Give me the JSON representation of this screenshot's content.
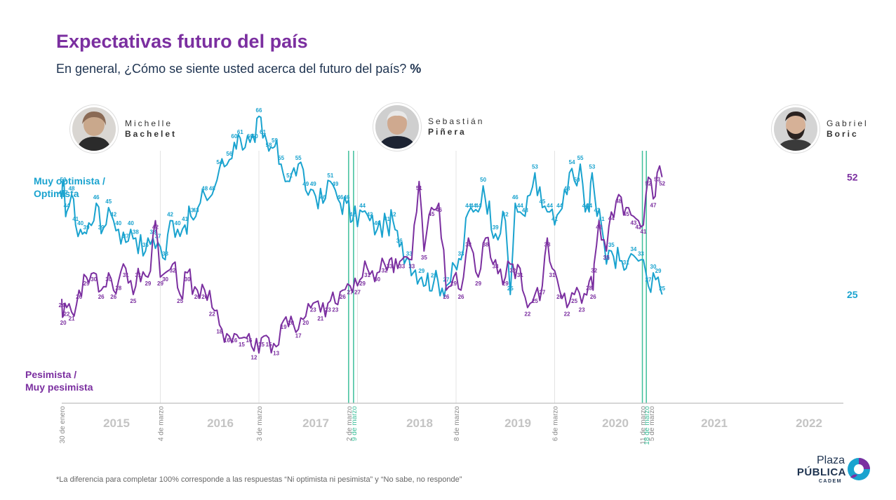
{
  "title": "Expectativas futuro del país",
  "subtitle_main": "En general, ¿Cómo se siente usted acerca del futuro del país? ",
  "subtitle_unit": "%",
  "presidents": [
    {
      "first": "Michelle",
      "last": "Bachelet"
    },
    {
      "first": "Sebastián",
      "last": "Piñera"
    },
    {
      "first": "Gabriel",
      "last": "Boric"
    }
  ],
  "series_labels": {
    "optimista_1": "Muy optimista /",
    "optimista_2": "Optimista",
    "pesimista_1": "Pesimista /",
    "pesimista_2": "Muy pesimista"
  },
  "footnote": "*La diferencia para completar 100% corresponde a las respuestas “Ni optimista ni pesimista” y “No sabe, no responde”",
  "logo": {
    "line1": "Plaza",
    "line2": "PÚBLICA",
    "line3": "CADEM"
  },
  "colors": {
    "optimista": "#1aa3cf",
    "pesimista": "#7b2fa0",
    "transition": "#3dbf9a",
    "grid": "#e3e3e3",
    "year": "#c4c4c4",
    "date": "#8a8a8a"
  },
  "chart_data": {
    "type": "line",
    "x_start_label": "30 de enero",
    "date_markers": [
      {
        "label": "4 de marzo",
        "kind": "normal"
      },
      {
        "label": "3 de marzo",
        "kind": "normal"
      },
      {
        "label": "2 de marzo",
        "kind": "normal"
      },
      {
        "label": "9 de marzo",
        "kind": "transition"
      },
      {
        "label": "8 de marzo",
        "kind": "normal"
      },
      {
        "label": "6 de marzo",
        "kind": "normal"
      },
      {
        "label": "5 de marzo",
        "kind": "normal"
      },
      {
        "label": "11 de marzo",
        "kind": "normal"
      },
      {
        "label": "18 de marzo",
        "kind": "transition"
      }
    ],
    "years": [
      "2015",
      "2016",
      "2017",
      "2018",
      "2019",
      "2020",
      "2021",
      "2022"
    ],
    "series": [
      {
        "name": "Muy optimista / Optimista",
        "final_label": "25",
        "points": [
          [
            0,
            47
          ],
          [
            0.03,
            50
          ],
          [
            0.06,
            47
          ],
          [
            0.1,
            44
          ],
          [
            0.2,
            48
          ],
          [
            0.28,
            41
          ],
          [
            0.38,
            40
          ],
          [
            0.5,
            39
          ],
          [
            0.7,
            46
          ],
          [
            0.8,
            39
          ],
          [
            0.95,
            45
          ],
          [
            1.05,
            42
          ],
          [
            1.15,
            40
          ],
          [
            1.3,
            37
          ],
          [
            1.4,
            40
          ],
          [
            1.5,
            38
          ],
          [
            1.7,
            35
          ],
          [
            1.85,
            38
          ],
          [
            1.95,
            37
          ],
          [
            2.1,
            33
          ],
          [
            2.2,
            42
          ],
          [
            2.35,
            40
          ],
          [
            2.5,
            41
          ],
          [
            2.62,
            43
          ],
          [
            2.72,
            43
          ],
          [
            2.9,
            48
          ],
          [
            3.05,
            48
          ],
          [
            3.2,
            54
          ],
          [
            3.4,
            56
          ],
          [
            3.5,
            60
          ],
          [
            3.62,
            61
          ],
          [
            3.82,
            60
          ],
          [
            3.92,
            60
          ],
          [
            4.0,
            66
          ],
          [
            4.08,
            61
          ],
          [
            4.2,
            58
          ],
          [
            4.32,
            59
          ],
          [
            4.45,
            55
          ],
          [
            4.62,
            51
          ],
          [
            4.8,
            55
          ],
          [
            4.95,
            49
          ],
          [
            5.1,
            49
          ],
          [
            5.3,
            46
          ],
          [
            5.45,
            51
          ],
          [
            5.55,
            49
          ],
          [
            5.65,
            46
          ],
          [
            5.78,
            46
          ],
          [
            5.9,
            42
          ],
          [
            6.1,
            44
          ],
          [
            6.25,
            42
          ],
          [
            6.4,
            40
          ],
          [
            6.6,
            41
          ],
          [
            6.72,
            42
          ],
          [
            6.85,
            36
          ],
          [
            7.05,
            33
          ],
          [
            7.3,
            29
          ],
          [
            7.55,
            28
          ],
          [
            7.8,
            27
          ],
          [
            8.1,
            33
          ],
          [
            8.25,
            44
          ],
          [
            8.35,
            44
          ],
          [
            8.45,
            44
          ],
          [
            8.55,
            50
          ],
          [
            8.8,
            39
          ],
          [
            9.0,
            42
          ],
          [
            9.1,
            25
          ],
          [
            9.2,
            46
          ],
          [
            9.3,
            44
          ],
          [
            9.4,
            43
          ],
          [
            9.6,
            53
          ],
          [
            9.75,
            45
          ],
          [
            9.9,
            44
          ],
          [
            10.0,
            41
          ],
          [
            10.1,
            44
          ],
          [
            10.25,
            48
          ],
          [
            10.35,
            54
          ],
          [
            10.45,
            50
          ],
          [
            10.52,
            55
          ],
          [
            10.62,
            44
          ],
          [
            10.7,
            44
          ],
          [
            10.76,
            53
          ],
          [
            10.86,
            43
          ],
          [
            10.95,
            41
          ],
          [
            11.05,
            32
          ],
          [
            11.15,
            35
          ],
          [
            11.45,
            31
          ],
          [
            11.6,
            34
          ],
          [
            11.75,
            33
          ],
          [
            11.9,
            27
          ],
          [
            12.0,
            30
          ],
          [
            12.1,
            29
          ],
          [
            12.18,
            25
          ]
        ]
      },
      {
        "name": "Pesimista / Muy pesimista",
        "final_label": "52",
        "points": [
          [
            0,
            24
          ],
          [
            0.03,
            20
          ],
          [
            0.1,
            22
          ],
          [
            0.2,
            21
          ],
          [
            0.35,
            26
          ],
          [
            0.5,
            29
          ],
          [
            0.65,
            30
          ],
          [
            0.8,
            26
          ],
          [
            0.95,
            30
          ],
          [
            1.05,
            26
          ],
          [
            1.15,
            28
          ],
          [
            1.3,
            31
          ],
          [
            1.45,
            25
          ],
          [
            1.55,
            31
          ],
          [
            1.75,
            29
          ],
          [
            1.9,
            42
          ],
          [
            2.0,
            29
          ],
          [
            2.1,
            30
          ],
          [
            2.25,
            32
          ],
          [
            2.4,
            25
          ],
          [
            2.55,
            30
          ],
          [
            2.75,
            26
          ],
          [
            2.9,
            26
          ],
          [
            3.05,
            22
          ],
          [
            3.2,
            18
          ],
          [
            3.35,
            16
          ],
          [
            3.5,
            16
          ],
          [
            3.65,
            15
          ],
          [
            3.8,
            16
          ],
          [
            3.9,
            12
          ],
          [
            4.05,
            15
          ],
          [
            4.2,
            15
          ],
          [
            4.35,
            13
          ],
          [
            4.5,
            19
          ],
          [
            4.65,
            20
          ],
          [
            4.8,
            17
          ],
          [
            4.95,
            20
          ],
          [
            5.1,
            23
          ],
          [
            5.25,
            21
          ],
          [
            5.4,
            23
          ],
          [
            5.55,
            23
          ],
          [
            5.7,
            26
          ],
          [
            5.85,
            27
          ],
          [
            6.0,
            27
          ],
          [
            6.1,
            29
          ],
          [
            6.2,
            31
          ],
          [
            6.4,
            30
          ],
          [
            6.55,
            32
          ],
          [
            6.65,
            33
          ],
          [
            6.9,
            33
          ],
          [
            7.1,
            33
          ],
          [
            7.25,
            51
          ],
          [
            7.35,
            35
          ],
          [
            7.5,
            45
          ],
          [
            7.65,
            46
          ],
          [
            7.8,
            26
          ],
          [
            7.95,
            29
          ],
          [
            8.1,
            26
          ],
          [
            8.25,
            38
          ],
          [
            8.45,
            29
          ],
          [
            8.6,
            38
          ],
          [
            8.8,
            33
          ],
          [
            9.0,
            29
          ],
          [
            9.15,
            32
          ],
          [
            9.3,
            31
          ],
          [
            9.45,
            22
          ],
          [
            9.6,
            25
          ],
          [
            9.75,
            27
          ],
          [
            9.85,
            38
          ],
          [
            9.95,
            31
          ],
          [
            10.1,
            26
          ],
          [
            10.25,
            22
          ],
          [
            10.4,
            25
          ],
          [
            10.55,
            23
          ],
          [
            10.7,
            28
          ],
          [
            10.78,
            26
          ],
          [
            10.8,
            32
          ],
          [
            10.9,
            42
          ],
          [
            11.05,
            35
          ],
          [
            11.15,
            44
          ],
          [
            11.3,
            48
          ],
          [
            11.45,
            45
          ],
          [
            11.6,
            43
          ],
          [
            11.7,
            42
          ],
          [
            11.8,
            41
          ],
          [
            11.9,
            52
          ],
          [
            12.0,
            47
          ],
          [
            12.08,
            53
          ],
          [
            12.18,
            52
          ]
        ]
      }
    ],
    "y_range": [
      0,
      80
    ]
  }
}
